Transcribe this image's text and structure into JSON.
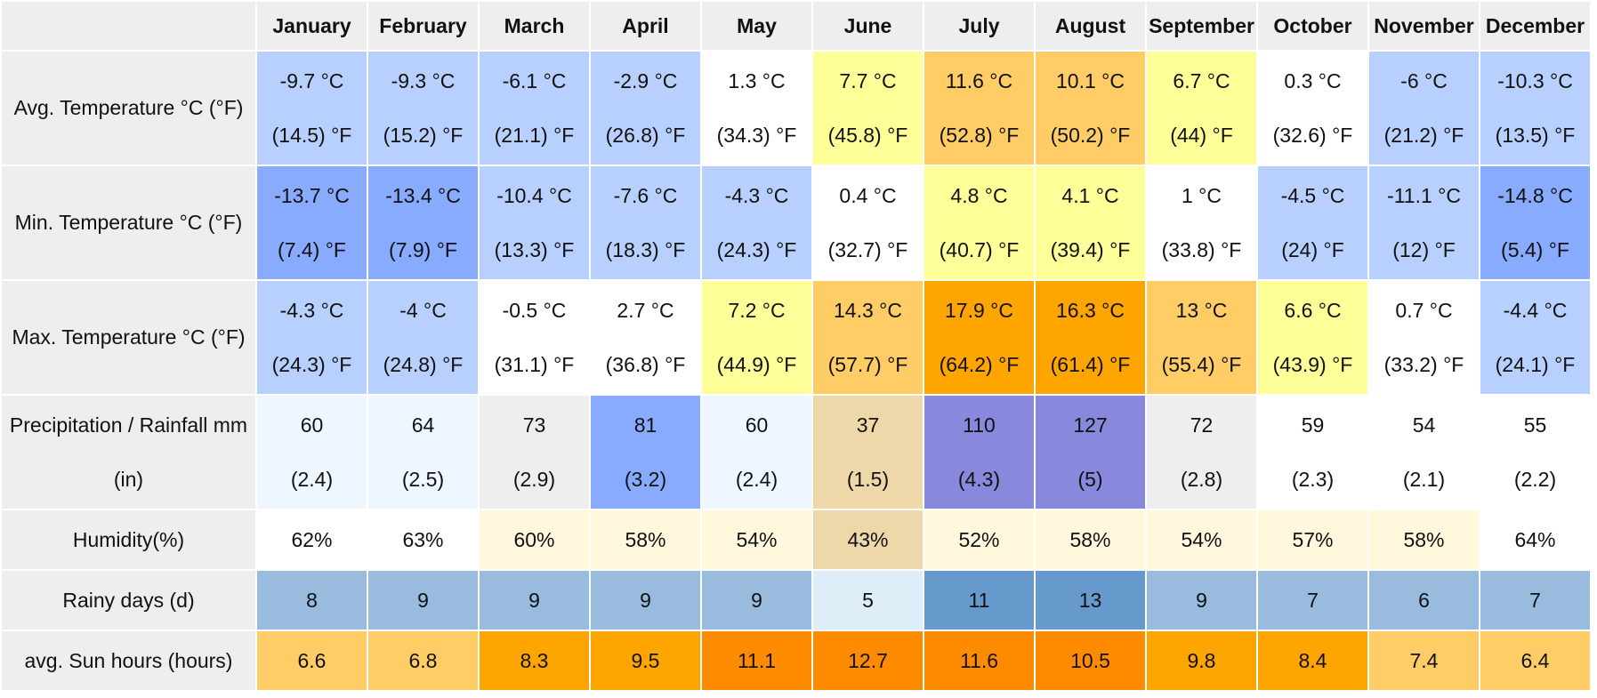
{
  "months": [
    "January",
    "February",
    "March",
    "April",
    "May",
    "June",
    "July",
    "August",
    "September",
    "October",
    "November",
    "December"
  ],
  "rows": [
    {
      "label": "Avg. Temperature °C (°F)",
      "cells": [
        {
          "line1": "-9.7 °C",
          "line2": "(14.5) °F",
          "color": "#b8d0ff"
        },
        {
          "line1": "-9.3 °C",
          "line2": "(15.2) °F",
          "color": "#b8d0ff"
        },
        {
          "line1": "-6.1 °C",
          "line2": "(21.1) °F",
          "color": "#b8d0ff"
        },
        {
          "line1": "-2.9 °C",
          "line2": "(26.8) °F",
          "color": "#b8d0ff"
        },
        {
          "line1": "1.3 °C",
          "line2": "(34.3) °F",
          "color": "#ffffff"
        },
        {
          "line1": "7.7 °C",
          "line2": "(45.8) °F",
          "color": "#ffff99"
        },
        {
          "line1": "11.6 °C",
          "line2": "(52.8) °F",
          "color": "#ffcc66"
        },
        {
          "line1": "10.1 °C",
          "line2": "(50.2) °F",
          "color": "#ffcc66"
        },
        {
          "line1": "6.7 °C",
          "line2": "(44) °F",
          "color": "#ffff99"
        },
        {
          "line1": "0.3 °C",
          "line2": "(32.6) °F",
          "color": "#ffffff"
        },
        {
          "line1": "-6 °C",
          "line2": "(21.2) °F",
          "color": "#b8d0ff"
        },
        {
          "line1": "-10.3 °C",
          "line2": "(13.5) °F",
          "color": "#b8d0ff"
        }
      ]
    },
    {
      "label": "Min. Temperature °C (°F)",
      "cells": [
        {
          "line1": "-13.7 °C",
          "line2": "(7.4) °F",
          "color": "#88aaff"
        },
        {
          "line1": "-13.4 °C",
          "line2": "(7.9) °F",
          "color": "#88aaff"
        },
        {
          "line1": "-10.4 °C",
          "line2": "(13.3) °F",
          "color": "#b8d0ff"
        },
        {
          "line1": "-7.6 °C",
          "line2": "(18.3) °F",
          "color": "#b8d0ff"
        },
        {
          "line1": "-4.3 °C",
          "line2": "(24.3) °F",
          "color": "#b8d0ff"
        },
        {
          "line1": "0.4 °C",
          "line2": "(32.7) °F",
          "color": "#ffffff"
        },
        {
          "line1": "4.8 °C",
          "line2": "(40.7) °F",
          "color": "#ffff99"
        },
        {
          "line1": "4.1 °C",
          "line2": "(39.4) °F",
          "color": "#ffff99"
        },
        {
          "line1": "1 °C",
          "line2": "(33.8) °F",
          "color": "#ffffff"
        },
        {
          "line1": "-4.5 °C",
          "line2": "(24) °F",
          "color": "#b8d0ff"
        },
        {
          "line1": "-11.1 °C",
          "line2": "(12) °F",
          "color": "#b8d0ff"
        },
        {
          "line1": "-14.8 °C",
          "line2": "(5.4) °F",
          "color": "#88aaff"
        }
      ]
    },
    {
      "label": "Max. Temperature °C (°F)",
      "cells": [
        {
          "line1": "-4.3 °C",
          "line2": "(24.3) °F",
          "color": "#b8d0ff"
        },
        {
          "line1": "-4 °C",
          "line2": "(24.8) °F",
          "color": "#b8d0ff"
        },
        {
          "line1": "-0.5 °C",
          "line2": "(31.1) °F",
          "color": "#ffffff"
        },
        {
          "line1": "2.7 °C",
          "line2": "(36.8) °F",
          "color": "#ffffff"
        },
        {
          "line1": "7.2 °C",
          "line2": "(44.9) °F",
          "color": "#ffff99"
        },
        {
          "line1": "14.3 °C",
          "line2": "(57.7) °F",
          "color": "#ffcc66"
        },
        {
          "line1": "17.9 °C",
          "line2": "(64.2) °F",
          "color": "#ffa500"
        },
        {
          "line1": "16.3 °C",
          "line2": "(61.4) °F",
          "color": "#ffa500"
        },
        {
          "line1": "13 °C",
          "line2": "(55.4) °F",
          "color": "#ffcc66"
        },
        {
          "line1": "6.6 °C",
          "line2": "(43.9) °F",
          "color": "#ffff99"
        },
        {
          "line1": "0.7 °C",
          "line2": "(33.2) °F",
          "color": "#ffffff"
        },
        {
          "line1": "-4.4 °C",
          "line2": "(24.1) °F",
          "color": "#b8d0ff"
        }
      ]
    },
    {
      "label": "Precipitation / Rainfall mm (in)",
      "cells": [
        {
          "line1": "60",
          "line2": "(2.4)",
          "color": "#eef6ff"
        },
        {
          "line1": "64",
          "line2": "(2.5)",
          "color": "#eef6ff"
        },
        {
          "line1": "73",
          "line2": "(2.9)",
          "color": "#eeeeee"
        },
        {
          "line1": "81",
          "line2": "(3.2)",
          "color": "#88aaff"
        },
        {
          "line1": "60",
          "line2": "(2.4)",
          "color": "#eef6ff"
        },
        {
          "line1": "37",
          "line2": "(1.5)",
          "color": "#eed8aa"
        },
        {
          "line1": "110",
          "line2": "(4.3)",
          "color": "#8888dd"
        },
        {
          "line1": "127",
          "line2": "(5)",
          "color": "#8888dd"
        },
        {
          "line1": "72",
          "line2": "(2.8)",
          "color": "#eeeeee"
        },
        {
          "line1": "59",
          "line2": "(2.3)",
          "color": "#ffffff"
        },
        {
          "line1": "54",
          "line2": "(2.1)",
          "color": "#ffffff"
        },
        {
          "line1": "55",
          "line2": "(2.2)",
          "color": "#ffffff"
        }
      ]
    }
  ],
  "single_rows": [
    {
      "label": "Humidity(%)",
      "cells": [
        {
          "value": "62%",
          "color": "#ffffff"
        },
        {
          "value": "63%",
          "color": "#ffffff"
        },
        {
          "value": "60%",
          "color": "#fff8dd"
        },
        {
          "value": "58%",
          "color": "#fff8dd"
        },
        {
          "value": "54%",
          "color": "#fff8dd"
        },
        {
          "value": "43%",
          "color": "#eed8aa"
        },
        {
          "value": "52%",
          "color": "#fff8dd"
        },
        {
          "value": "58%",
          "color": "#fff8dd"
        },
        {
          "value": "54%",
          "color": "#fff8dd"
        },
        {
          "value": "57%",
          "color": "#fff8dd"
        },
        {
          "value": "58%",
          "color": "#fff8dd"
        },
        {
          "value": "64%",
          "color": "#ffffff"
        }
      ]
    },
    {
      "label": "Rainy days (d)",
      "cells": [
        {
          "value": "8",
          "color": "#99bbdd"
        },
        {
          "value": "9",
          "color": "#99bbdd"
        },
        {
          "value": "9",
          "color": "#99bbdd"
        },
        {
          "value": "9",
          "color": "#99bbdd"
        },
        {
          "value": "9",
          "color": "#99bbdd"
        },
        {
          "value": "5",
          "color": "#ddeef8"
        },
        {
          "value": "11",
          "color": "#6699cc"
        },
        {
          "value": "13",
          "color": "#6699cc"
        },
        {
          "value": "9",
          "color": "#99bbdd"
        },
        {
          "value": "7",
          "color": "#99bbdd"
        },
        {
          "value": "6",
          "color": "#99bbdd"
        },
        {
          "value": "7",
          "color": "#99bbdd"
        }
      ]
    },
    {
      "label": "avg. Sun hours (hours)",
      "cells": [
        {
          "value": "6.6",
          "color": "#ffcc66"
        },
        {
          "value": "6.8",
          "color": "#ffcc66"
        },
        {
          "value": "8.3",
          "color": "#ffa500"
        },
        {
          "value": "9.5",
          "color": "#ffa500"
        },
        {
          "value": "11.1",
          "color": "#ff8c00"
        },
        {
          "value": "12.7",
          "color": "#ff8c00"
        },
        {
          "value": "11.6",
          "color": "#ff8c00"
        },
        {
          "value": "10.5",
          "color": "#ff8c00"
        },
        {
          "value": "9.8",
          "color": "#ffa500"
        },
        {
          "value": "8.4",
          "color": "#ffa500"
        },
        {
          "value": "7.4",
          "color": "#ffcc66"
        },
        {
          "value": "6.4",
          "color": "#ffcc66"
        }
      ]
    }
  ],
  "colors": {
    "header_bg": "#eeeeee",
    "cold": "#b8d0ff",
    "very_cold": "#88aaff",
    "mild": "#ffff99",
    "warm": "#ffcc66",
    "hot": "#ffa500"
  }
}
